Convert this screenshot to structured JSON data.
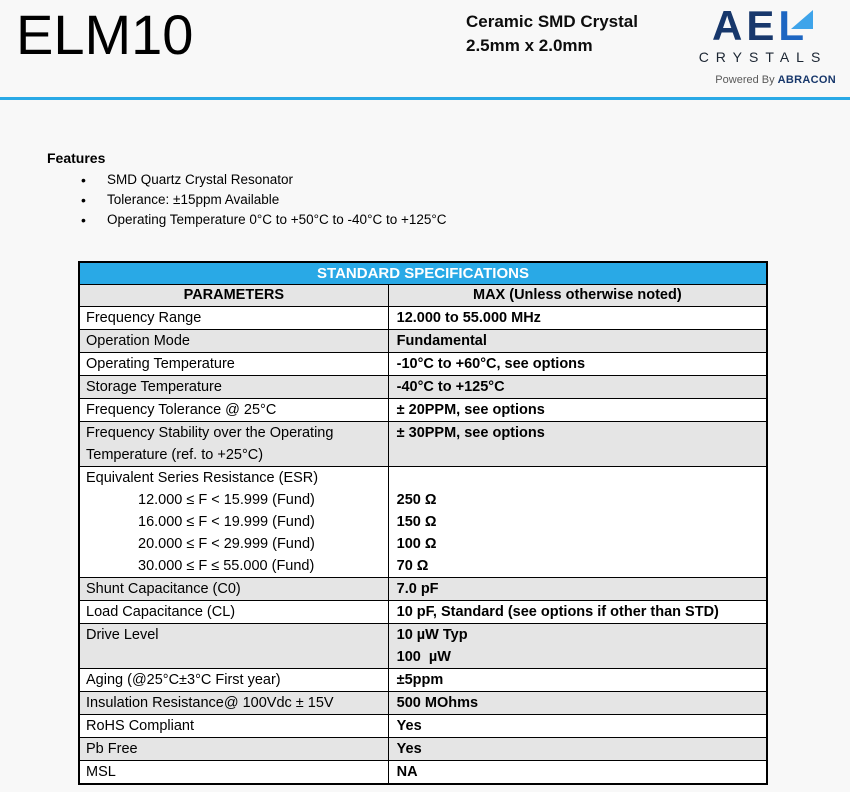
{
  "colors": {
    "accent": "#29a9e6",
    "row_shade": "#e5e5e5",
    "logo_navy": "#17376b",
    "logo_blue": "#1d66c2",
    "logo_triangle": "#3fa4ea"
  },
  "header": {
    "product": "ELM10",
    "subtitle_line1": "Ceramic SMD Crystal",
    "subtitle_line2": "2.5mm x 2.0mm",
    "logo": {
      "ae": "AE",
      "l": "L",
      "sub": "CRYSTALS",
      "powered_prefix": "Powered By",
      "powered_brand": "ABRACON"
    }
  },
  "features": {
    "heading": "Features",
    "items": [
      "SMD Quartz Crystal Resonator",
      "Tolerance: ±15ppm Available",
      "Operating Temperature 0°C to +50°C to -40°C to +125°C"
    ]
  },
  "table": {
    "title": "STANDARD SPECIFICATIONS",
    "col_headers": [
      "PARAMETERS",
      "MAX (Unless otherwise noted)"
    ],
    "rows": [
      {
        "shade": false,
        "param": [
          {
            "text": "Frequency Range"
          }
        ],
        "value": [
          "12.000 to 55.000 MHz"
        ]
      },
      {
        "shade": true,
        "param": [
          {
            "text": "Operation Mode"
          }
        ],
        "value": [
          "Fundamental"
        ]
      },
      {
        "shade": false,
        "param": [
          {
            "text": "Operating Temperature"
          }
        ],
        "value": [
          "-10°C to +60°C, see options"
        ]
      },
      {
        "shade": true,
        "param": [
          {
            "text": "Storage Temperature"
          }
        ],
        "value": [
          "-40°C to +125°C"
        ]
      },
      {
        "shade": false,
        "param": [
          {
            "text": "Frequency Tolerance @ 25°C"
          }
        ],
        "value": [
          "± 20PPM, see options"
        ]
      },
      {
        "shade": true,
        "param": [
          {
            "text": "Frequency Stability over the Operating Temperature (ref. to +25°C)"
          }
        ],
        "value": [
          "± 30PPM, see options"
        ]
      },
      {
        "shade": false,
        "param": [
          {
            "text": "Equivalent Series Resistance (ESR)"
          },
          {
            "text": "12.000 ≤ F < 15.999 (Fund)",
            "indent": true
          },
          {
            "text": "16.000 ≤ F < 19.999 (Fund)",
            "indent": true
          },
          {
            "text": "20.000 ≤ F < 29.999 (Fund)",
            "indent": true
          },
          {
            "text": "30.000 ≤ F ≤ 55.000 (Fund)",
            "indent": true
          }
        ],
        "value": [
          "",
          "250 Ω",
          "150 Ω",
          "100 Ω",
          "70 Ω"
        ]
      },
      {
        "shade": true,
        "param": [
          {
            "text": "Shunt Capacitance (C0)"
          }
        ],
        "value": [
          "7.0 pF"
        ]
      },
      {
        "shade": false,
        "param": [
          {
            "text": "Load Capacitance (CL)"
          }
        ],
        "value": [
          "10 pF, Standard (see options if other than STD)"
        ]
      },
      {
        "shade": true,
        "param": [
          {
            "text": "Drive Level"
          }
        ],
        "value": [
          "10 µW Typ",
          "100  µW"
        ]
      },
      {
        "shade": false,
        "param": [
          {
            "text": "Aging (@25°C±3°C First year)"
          }
        ],
        "value": [
          "±5ppm"
        ]
      },
      {
        "shade": true,
        "param": [
          {
            "text": "Insulation Resistance@ 100Vdc ± 15V"
          }
        ],
        "value": [
          "500 MOhms"
        ]
      },
      {
        "shade": false,
        "param": [
          {
            "text": "RoHS Compliant"
          }
        ],
        "value": [
          "Yes"
        ]
      },
      {
        "shade": true,
        "param": [
          {
            "text": "Pb Free"
          }
        ],
        "value": [
          "Yes"
        ]
      },
      {
        "shade": false,
        "param": [
          {
            "text": "MSL"
          }
        ],
        "value": [
          "NA"
        ]
      }
    ]
  }
}
